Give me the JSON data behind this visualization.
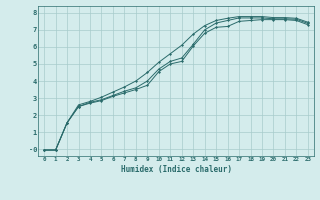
{
  "xlabel": "Humidex (Indice chaleur)",
  "xlim": [
    -0.5,
    23.5
  ],
  "ylim": [
    -0.4,
    8.4
  ],
  "xticks": [
    0,
    1,
    2,
    3,
    4,
    5,
    6,
    7,
    8,
    9,
    10,
    11,
    12,
    13,
    14,
    15,
    16,
    17,
    18,
    19,
    20,
    21,
    22,
    23
  ],
  "yticks": [
    0,
    1,
    2,
    3,
    4,
    5,
    6,
    7,
    8
  ],
  "background_color": "#d4ecec",
  "grid_color": "#a8cccc",
  "line_color": "#2a6b6b",
  "line1_x": [
    0,
    1,
    2,
    3,
    4,
    5,
    6,
    7,
    8,
    9,
    10,
    11,
    12,
    13,
    14,
    15,
    16,
    17,
    18,
    19,
    20,
    21,
    22,
    23
  ],
  "line1_y": [
    -0.05,
    -0.05,
    1.55,
    2.5,
    2.7,
    2.85,
    3.1,
    3.3,
    3.5,
    3.75,
    4.55,
    5.0,
    5.15,
    6.05,
    6.8,
    7.15,
    7.2,
    7.5,
    7.55,
    7.6,
    7.6,
    7.6,
    7.55,
    7.3
  ],
  "line2_x": [
    0,
    1,
    2,
    3,
    4,
    5,
    6,
    7,
    8,
    9,
    10,
    11,
    12,
    13,
    14,
    15,
    16,
    17,
    18,
    19,
    20,
    21,
    22,
    23
  ],
  "line2_y": [
    -0.05,
    -0.05,
    1.55,
    2.5,
    2.75,
    2.9,
    3.15,
    3.4,
    3.6,
    4.0,
    4.7,
    5.15,
    5.35,
    6.15,
    7.0,
    7.4,
    7.55,
    7.7,
    7.7,
    7.7,
    7.65,
    7.65,
    7.62,
    7.38
  ],
  "line3_x": [
    0,
    1,
    2,
    3,
    4,
    5,
    6,
    7,
    8,
    9,
    10,
    11,
    12,
    13,
    14,
    15,
    16,
    17,
    18,
    19,
    20,
    21,
    22,
    23
  ],
  "line3_y": [
    -0.05,
    -0.05,
    1.55,
    2.6,
    2.8,
    3.05,
    3.35,
    3.65,
    4.0,
    4.5,
    5.1,
    5.6,
    6.1,
    6.75,
    7.25,
    7.55,
    7.68,
    7.78,
    7.78,
    7.78,
    7.72,
    7.72,
    7.68,
    7.45
  ]
}
